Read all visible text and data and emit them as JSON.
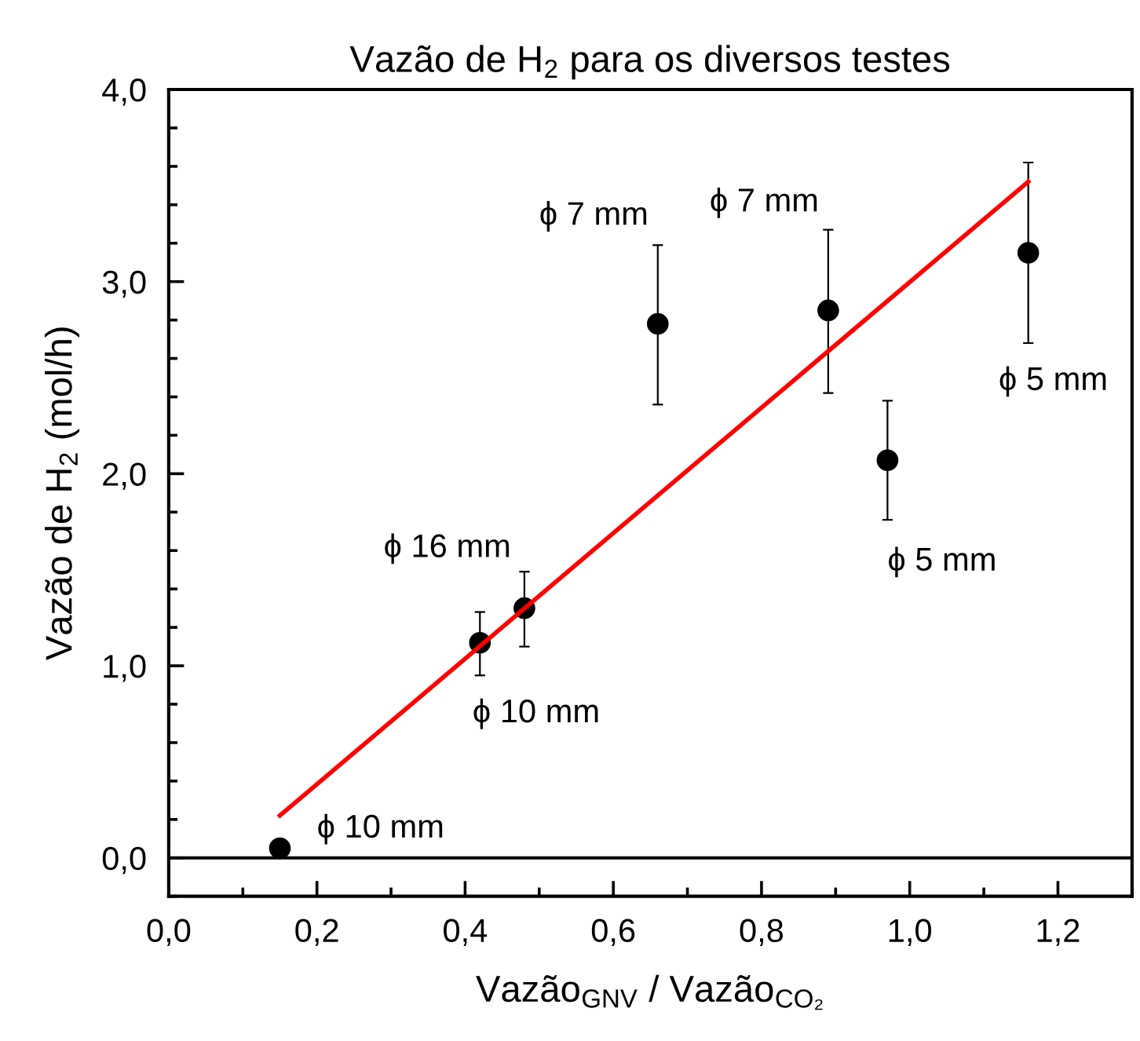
{
  "chart_data": {
    "type": "scatter",
    "title": "Vazão de H$_{2}$ para os diversos testes",
    "xlabel": "Vazão$_{GNV}$ / Vazão$_{CO₂}$",
    "ylabel": "Vazão de H$_{2}$ (mol/h)",
    "series": [
      {
        "color": "#000000",
        "marker": "circle",
        "x": [
          0.15,
          0.42,
          0.48,
          0.66,
          0.89,
          0.97,
          1.16
        ],
        "values": [
          0.05,
          1.12,
          1.3,
          2.78,
          2.85,
          2.07,
          3.15
        ],
        "errors": [
          null,
          [
            0.95,
            1.28
          ],
          [
            1.1,
            1.49
          ],
          [
            2.36,
            3.19
          ],
          [
            2.42,
            3.27
          ],
          [
            1.76,
            2.38
          ],
          [
            2.68,
            3.62
          ]
        ]
      },
      {
        "type": "line",
        "color": "#ff0000",
        "x": [
          0.15,
          1.16
        ],
        "values": [
          0.22,
          3.52
        ]
      }
    ],
    "ref_lines": [
      {
        "axis": "y",
        "value": 0,
        "color": "#000000"
      }
    ],
    "annotations": [
      {
        "text": "ϕ 10 mm",
        "x": 0.15,
        "y": 0.05
      },
      {
        "text": "ϕ 10 mm",
        "x": 0.42,
        "y": 1.12
      },
      {
        "text": "ϕ 16 mm",
        "x": 0.48,
        "y": 1.3
      },
      {
        "text": "ϕ 7 mm",
        "x": 0.66,
        "y": 2.78
      },
      {
        "text": "ϕ 7 mm",
        "x": 0.89,
        "y": 2.85
      },
      {
        "text": "ϕ 5 mm",
        "x": 0.97,
        "y": 2.07
      },
      {
        "text": "ϕ 5 mm",
        "x": 1.16,
        "y": 2.68
      }
    ],
    "xlim": [
      0,
      1.3
    ],
    "ylim": [
      -0.2,
      4.0
    ],
    "xticks": [
      {
        "value": 0,
        "label": "0,0"
      },
      {
        "value": 0.2,
        "label": "0,2"
      },
      {
        "value": 0.4,
        "label": "0,4"
      },
      {
        "value": 0.6,
        "label": "0,6"
      },
      {
        "value": 0.8,
        "label": "0,8"
      },
      {
        "value": 1.0,
        "label": "1,0"
      },
      {
        "value": 1.2,
        "label": "1,2"
      }
    ],
    "yticks": [
      {
        "value": 0,
        "label": "0,0"
      },
      {
        "value": 1,
        "label": "1,0"
      },
      {
        "value": 2,
        "label": "2,0"
      },
      {
        "value": 3,
        "label": "3,0"
      },
      {
        "value": 4,
        "label": "4,0"
      }
    ],
    "grid": false,
    "legend": false
  }
}
